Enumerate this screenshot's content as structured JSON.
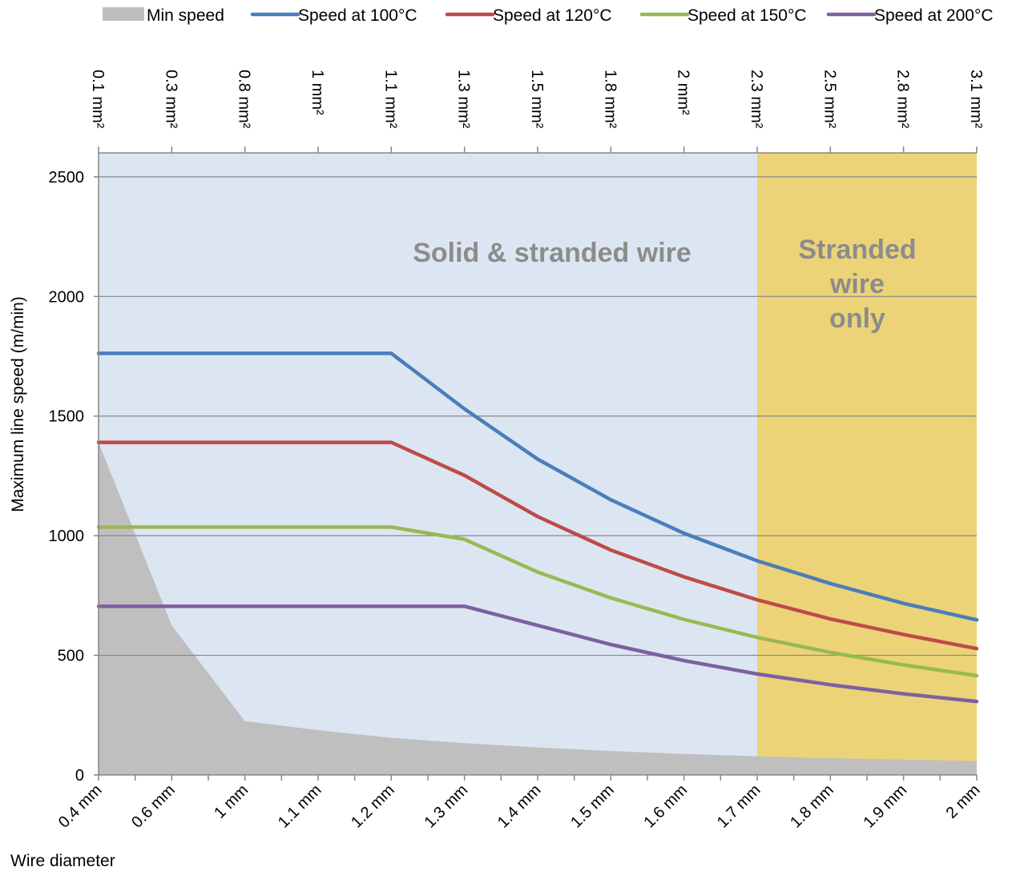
{
  "chart_data": {
    "type": "line",
    "xlabel": "Wire diameter",
    "ylabel": "Maximum line speed (m/min)",
    "ylim": [
      0,
      2600
    ],
    "y_ticks": [
      0,
      500,
      1000,
      1500,
      2000,
      2500
    ],
    "y_tick_labels": [
      "0",
      "500",
      "1000",
      "1500",
      "2000",
      "2500"
    ],
    "categories": [
      "0.4 mm",
      "0.6 mm",
      "1 mm",
      "1.1 mm",
      "1.2 mm",
      "1.3 mm",
      "1.4 mm",
      "1.5 mm",
      "1.6 mm",
      "1.7 mm",
      "1.8 mm",
      "1.9 mm",
      "2 mm"
    ],
    "x": [
      0.4,
      0.6,
      0.8,
      1.0,
      1.2,
      1.4,
      1.6,
      1.8,
      2.0,
      2.2,
      2.4,
      2.6,
      2.8
    ],
    "top_axis_labels": [
      "0.1 mm²",
      "0.3 mm²",
      "0.8 mm²",
      "1 mm²",
      "1.1 mm²",
      "1.3 mm²",
      "1.5 mm²",
      "1.8 mm²",
      "2 mm²",
      "2.3 mm²",
      "2.5 mm²",
      "2.8 mm²",
      "3.1 mm²"
    ],
    "top_axis_x": [
      0.4,
      0.6,
      0.8,
      1.0,
      1.2,
      1.4,
      1.6,
      1.8,
      2.0,
      2.2,
      2.4,
      2.6,
      2.8
    ],
    "grid": true,
    "legend_position": "top",
    "regions": [
      {
        "label_lines": [
          "Solid & stranded wire"
        ],
        "x_range": [
          0.4,
          2.2
        ],
        "color": "#dce6f2"
      },
      {
        "label_lines": [
          "Stranded",
          "wire",
          "only"
        ],
        "x_range": [
          2.2,
          2.8
        ],
        "color": "#edd377"
      }
    ],
    "series": [
      {
        "name": "Min speed",
        "kind": "area",
        "color": "#bfbfbf",
        "points": [
          [
            0.4,
            1390
          ],
          [
            0.6,
            625
          ],
          [
            0.8,
            225
          ],
          [
            1.0,
            187
          ],
          [
            1.2,
            155
          ],
          [
            1.4,
            133
          ],
          [
            1.6,
            115
          ],
          [
            1.8,
            100
          ],
          [
            2.0,
            88
          ],
          [
            2.2,
            78
          ],
          [
            2.4,
            70
          ],
          [
            2.6,
            64
          ],
          [
            2.8,
            58
          ]
        ]
      },
      {
        "name": "Speed at 100°C",
        "kind": "line",
        "color": "#4a7ebb",
        "points": [
          [
            0.4,
            1762
          ],
          [
            1.2,
            1762
          ],
          [
            1.4,
            1530
          ],
          [
            1.6,
            1320
          ],
          [
            1.8,
            1150
          ],
          [
            2.0,
            1010
          ],
          [
            2.2,
            895
          ],
          [
            2.4,
            800
          ],
          [
            2.6,
            717
          ],
          [
            2.8,
            648
          ]
        ]
      },
      {
        "name": "Speed at 120°C",
        "kind": "line",
        "color": "#be4b48",
        "points": [
          [
            0.4,
            1390
          ],
          [
            1.2,
            1390
          ],
          [
            1.4,
            1252
          ],
          [
            1.6,
            1080
          ],
          [
            1.8,
            940
          ],
          [
            2.0,
            828
          ],
          [
            2.2,
            732
          ],
          [
            2.4,
            652
          ],
          [
            2.6,
            587
          ],
          [
            2.8,
            528
          ]
        ]
      },
      {
        "name": "Speed at 150°C",
        "kind": "line",
        "color": "#98b954",
        "points": [
          [
            0.4,
            1036
          ],
          [
            1.2,
            1036
          ],
          [
            1.4,
            985
          ],
          [
            1.6,
            848
          ],
          [
            1.8,
            740
          ],
          [
            2.0,
            650
          ],
          [
            2.2,
            575
          ],
          [
            2.4,
            512
          ],
          [
            2.6,
            460
          ],
          [
            2.8,
            415
          ]
        ]
      },
      {
        "name": "Speed at 200°C",
        "kind": "line",
        "color": "#7d60a0",
        "points": [
          [
            0.4,
            705
          ],
          [
            1.4,
            705
          ],
          [
            1.6,
            625
          ],
          [
            1.8,
            545
          ],
          [
            2.0,
            478
          ],
          [
            2.2,
            422
          ],
          [
            2.4,
            377
          ],
          [
            2.6,
            339
          ],
          [
            2.8,
            307
          ]
        ]
      }
    ]
  }
}
